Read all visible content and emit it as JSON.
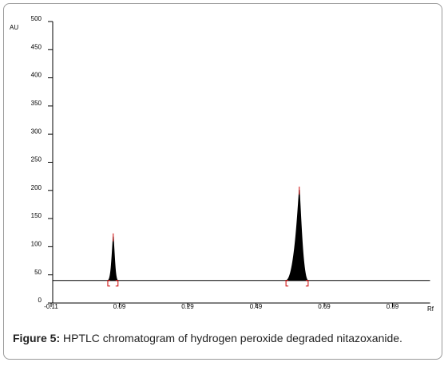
{
  "chart_data": {
    "type": "chromatogram",
    "y_label": "AU",
    "x_label": "Rf",
    "xlim": [
      -0.11,
      1.0
    ],
    "xticks": [
      -0.11,
      0.09,
      0.29,
      0.49,
      0.69,
      0.89
    ],
    "ylim": [
      0,
      500
    ],
    "yticks": [
      0,
      50,
      100,
      150,
      200,
      250,
      300,
      350,
      400,
      450,
      500
    ],
    "baseline": 40,
    "color": "#000000",
    "marker_color": "#cc0000",
    "peaks": [
      {
        "rf": 0.072,
        "height": 118,
        "start": 0.056,
        "end": 0.086
      },
      {
        "rf": 0.617,
        "height": 201,
        "start": 0.578,
        "end": 0.643
      }
    ],
    "caption": {
      "label": "Figure 5:",
      "text": "HPTLC chromatogram of hydrogen peroxide degraded nitazoxanide."
    }
  }
}
